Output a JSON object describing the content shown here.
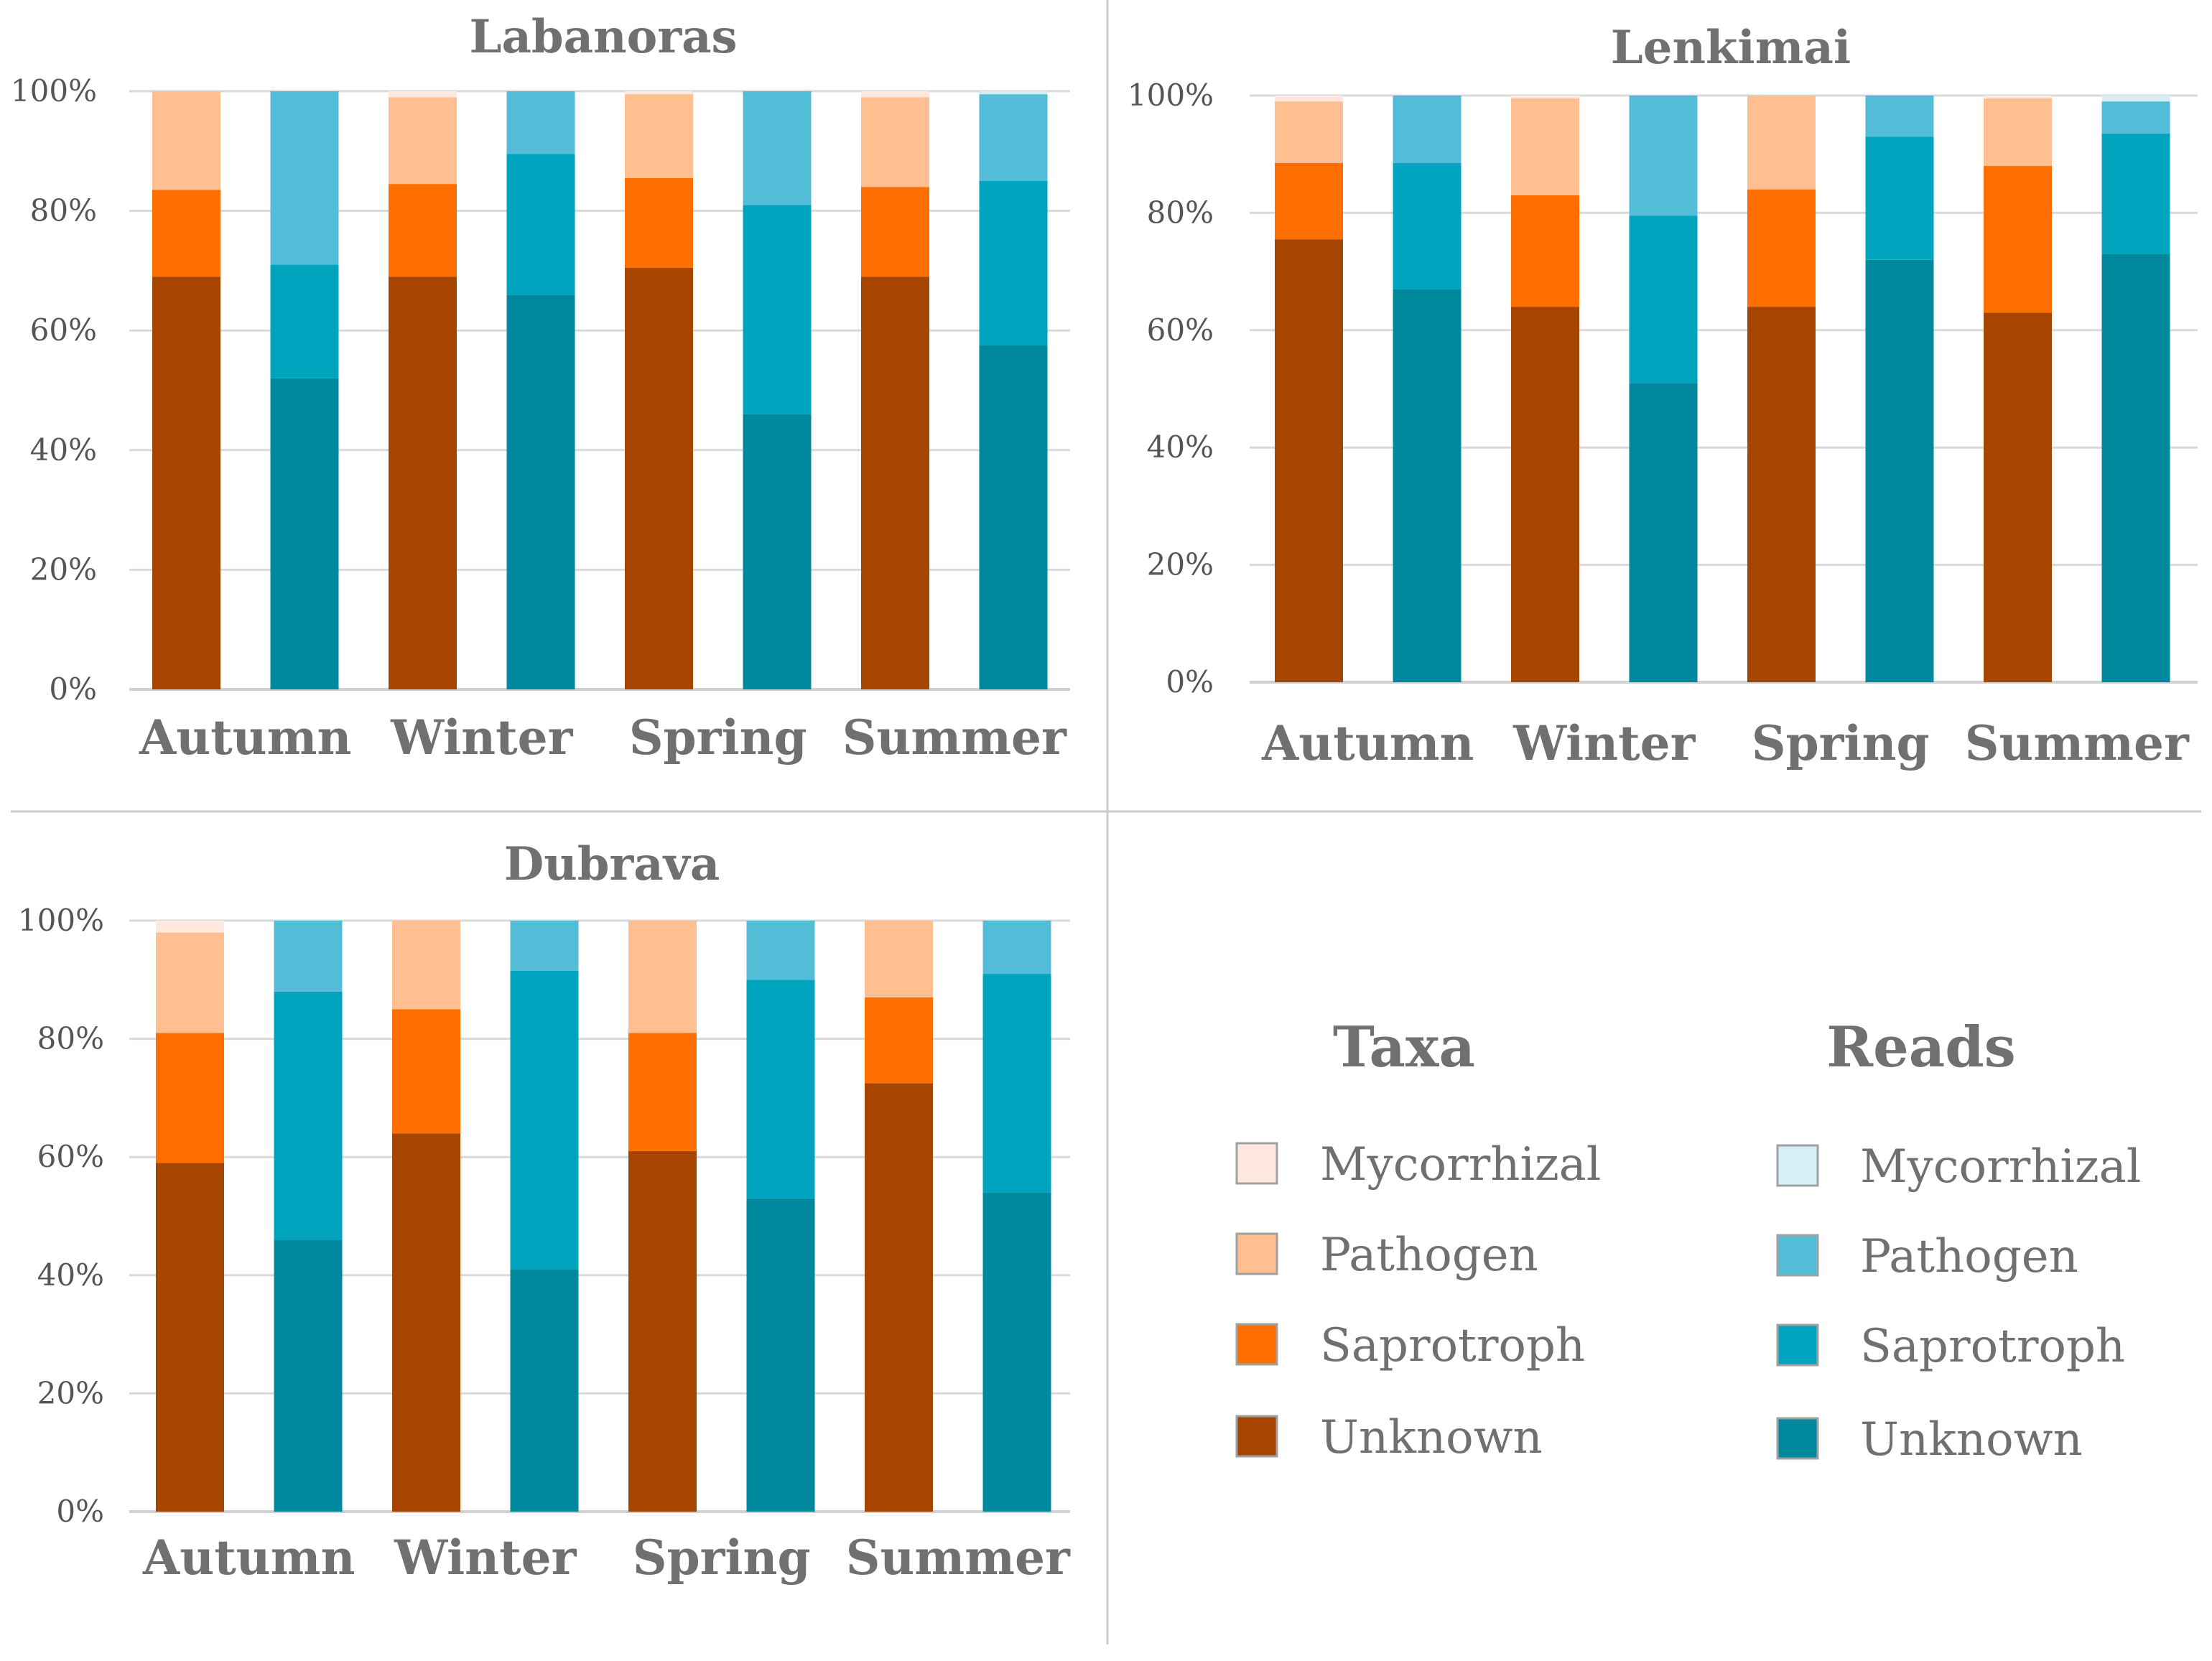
{
  "chart_data": [
    {
      "type": "bar",
      "stacked": true,
      "title": "Labanoras",
      "categories": [
        "Autumn",
        "Winter",
        "Spring",
        "Summer"
      ],
      "yticks": [
        "0%",
        "20%",
        "40%",
        "60%",
        "80%",
        "100%"
      ],
      "ylim": [
        0,
        100
      ],
      "bars": [
        {
          "season": "Autumn",
          "group": "Taxa",
          "unknown": 69,
          "saprotroph": 14.5,
          "pathogen": 16.5,
          "mycorrhizal": 0
        },
        {
          "season": "Autumn",
          "group": "Reads",
          "unknown": 52,
          "saprotroph": 19,
          "pathogen": 29,
          "mycorrhizal": 0
        },
        {
          "season": "Winter",
          "group": "Taxa",
          "unknown": 69,
          "saprotroph": 15.5,
          "pathogen": 14.5,
          "mycorrhizal": 1
        },
        {
          "season": "Winter",
          "group": "Reads",
          "unknown": 66,
          "saprotroph": 23.5,
          "pathogen": 10.5,
          "mycorrhizal": 0
        },
        {
          "season": "Spring",
          "group": "Taxa",
          "unknown": 70.5,
          "saprotroph": 15,
          "pathogen": 14,
          "mycorrhizal": 0.5
        },
        {
          "season": "Spring",
          "group": "Reads",
          "unknown": 46,
          "saprotroph": 35,
          "pathogen": 19,
          "mycorrhizal": 0
        },
        {
          "season": "Summer",
          "group": "Taxa",
          "unknown": 69,
          "saprotroph": 15,
          "pathogen": 15,
          "mycorrhizal": 1
        },
        {
          "season": "Summer",
          "group": "Reads",
          "unknown": 57.5,
          "saprotroph": 27.5,
          "pathogen": 14.5,
          "mycorrhizal": 0.5
        }
      ]
    },
    {
      "type": "bar",
      "stacked": true,
      "title": "Lenkimai",
      "categories": [
        "Autumn",
        "Winter",
        "Spring",
        "Summer"
      ],
      "yticks": [
        "0%",
        "20%",
        "40%",
        "60%",
        "80%",
        "100%"
      ],
      "ylim": [
        0,
        100
      ],
      "bars": [
        {
          "season": "Autumn",
          "group": "Taxa",
          "unknown": 75.5,
          "saprotroph": 13,
          "pathogen": 10.5,
          "mycorrhizal": 1
        },
        {
          "season": "Autumn",
          "group": "Reads",
          "unknown": 67,
          "saprotroph": 21.5,
          "pathogen": 11.5,
          "mycorrhizal": 0
        },
        {
          "season": "Winter",
          "group": "Taxa",
          "unknown": 64,
          "saprotroph": 19,
          "pathogen": 16.5,
          "mycorrhizal": 0.5
        },
        {
          "season": "Winter",
          "group": "Reads",
          "unknown": 51,
          "saprotroph": 28.5,
          "pathogen": 20.5,
          "mycorrhizal": 0
        },
        {
          "season": "Spring",
          "group": "Taxa",
          "unknown": 64,
          "saprotroph": 20,
          "pathogen": 16,
          "mycorrhizal": 0
        },
        {
          "season": "Spring",
          "group": "Reads",
          "unknown": 72,
          "saprotroph": 21,
          "pathogen": 7,
          "mycorrhizal": 0
        },
        {
          "season": "Summer",
          "group": "Taxa",
          "unknown": 63,
          "saprotroph": 25,
          "pathogen": 11.5,
          "mycorrhizal": 0.5
        },
        {
          "season": "Summer",
          "group": "Reads",
          "unknown": 73,
          "saprotroph": 20.5,
          "pathogen": 5.5,
          "mycorrhizal": 1
        }
      ]
    },
    {
      "type": "bar",
      "stacked": true,
      "title": "Dubrava",
      "categories": [
        "Autumn",
        "Winter",
        "Spring",
        "Summer"
      ],
      "yticks": [
        "0%",
        "20%",
        "40%",
        "60%",
        "80%",
        "100%"
      ],
      "ylim": [
        0,
        100
      ],
      "bars": [
        {
          "season": "Autumn",
          "group": "Taxa",
          "unknown": 59,
          "saprotroph": 22,
          "pathogen": 17,
          "mycorrhizal": 2
        },
        {
          "season": "Autumn",
          "group": "Reads",
          "unknown": 46,
          "saprotroph": 42,
          "pathogen": 12,
          "mycorrhizal": 0
        },
        {
          "season": "Winter",
          "group": "Taxa",
          "unknown": 64,
          "saprotroph": 21,
          "pathogen": 15,
          "mycorrhizal": 0
        },
        {
          "season": "Winter",
          "group": "Reads",
          "unknown": 41,
          "saprotroph": 50.5,
          "pathogen": 8.5,
          "mycorrhizal": 0
        },
        {
          "season": "Spring",
          "group": "Taxa",
          "unknown": 61,
          "saprotroph": 20,
          "pathogen": 19,
          "mycorrhizal": 0
        },
        {
          "season": "Spring",
          "group": "Reads",
          "unknown": 53,
          "saprotroph": 37,
          "pathogen": 10,
          "mycorrhizal": 0
        },
        {
          "season": "Summer",
          "group": "Taxa",
          "unknown": 72.5,
          "saprotroph": 14.5,
          "pathogen": 13,
          "mycorrhizal": 0
        },
        {
          "season": "Summer",
          "group": "Reads",
          "unknown": 54,
          "saprotroph": 37,
          "pathogen": 9,
          "mycorrhizal": 0
        }
      ]
    }
  ],
  "legend": {
    "taxa_title": "Taxa",
    "reads_title": "Reads",
    "items": [
      {
        "key": "mycorrhizal",
        "label": "Mycorrhizal"
      },
      {
        "key": "pathogen",
        "label": "Pathogen"
      },
      {
        "key": "saprotroph",
        "label": "Saprotroph"
      },
      {
        "key": "unknown",
        "label": "Unknown"
      }
    ]
  },
  "colors": {
    "Taxa": {
      "unknown": "#A54500",
      "saprotroph": "#FF6E00",
      "pathogen": "#FFBF90",
      "mycorrhizal": "#FFE8DD"
    },
    "Reads": {
      "unknown": "#00899D",
      "saprotroph": "#00A4BF",
      "pathogen": "#53BCD6",
      "mycorrhizal": "#D6EEF4"
    },
    "grid": "#D9D9D9",
    "axis": "#D0D0D0",
    "divider": "#CCCCCC"
  }
}
